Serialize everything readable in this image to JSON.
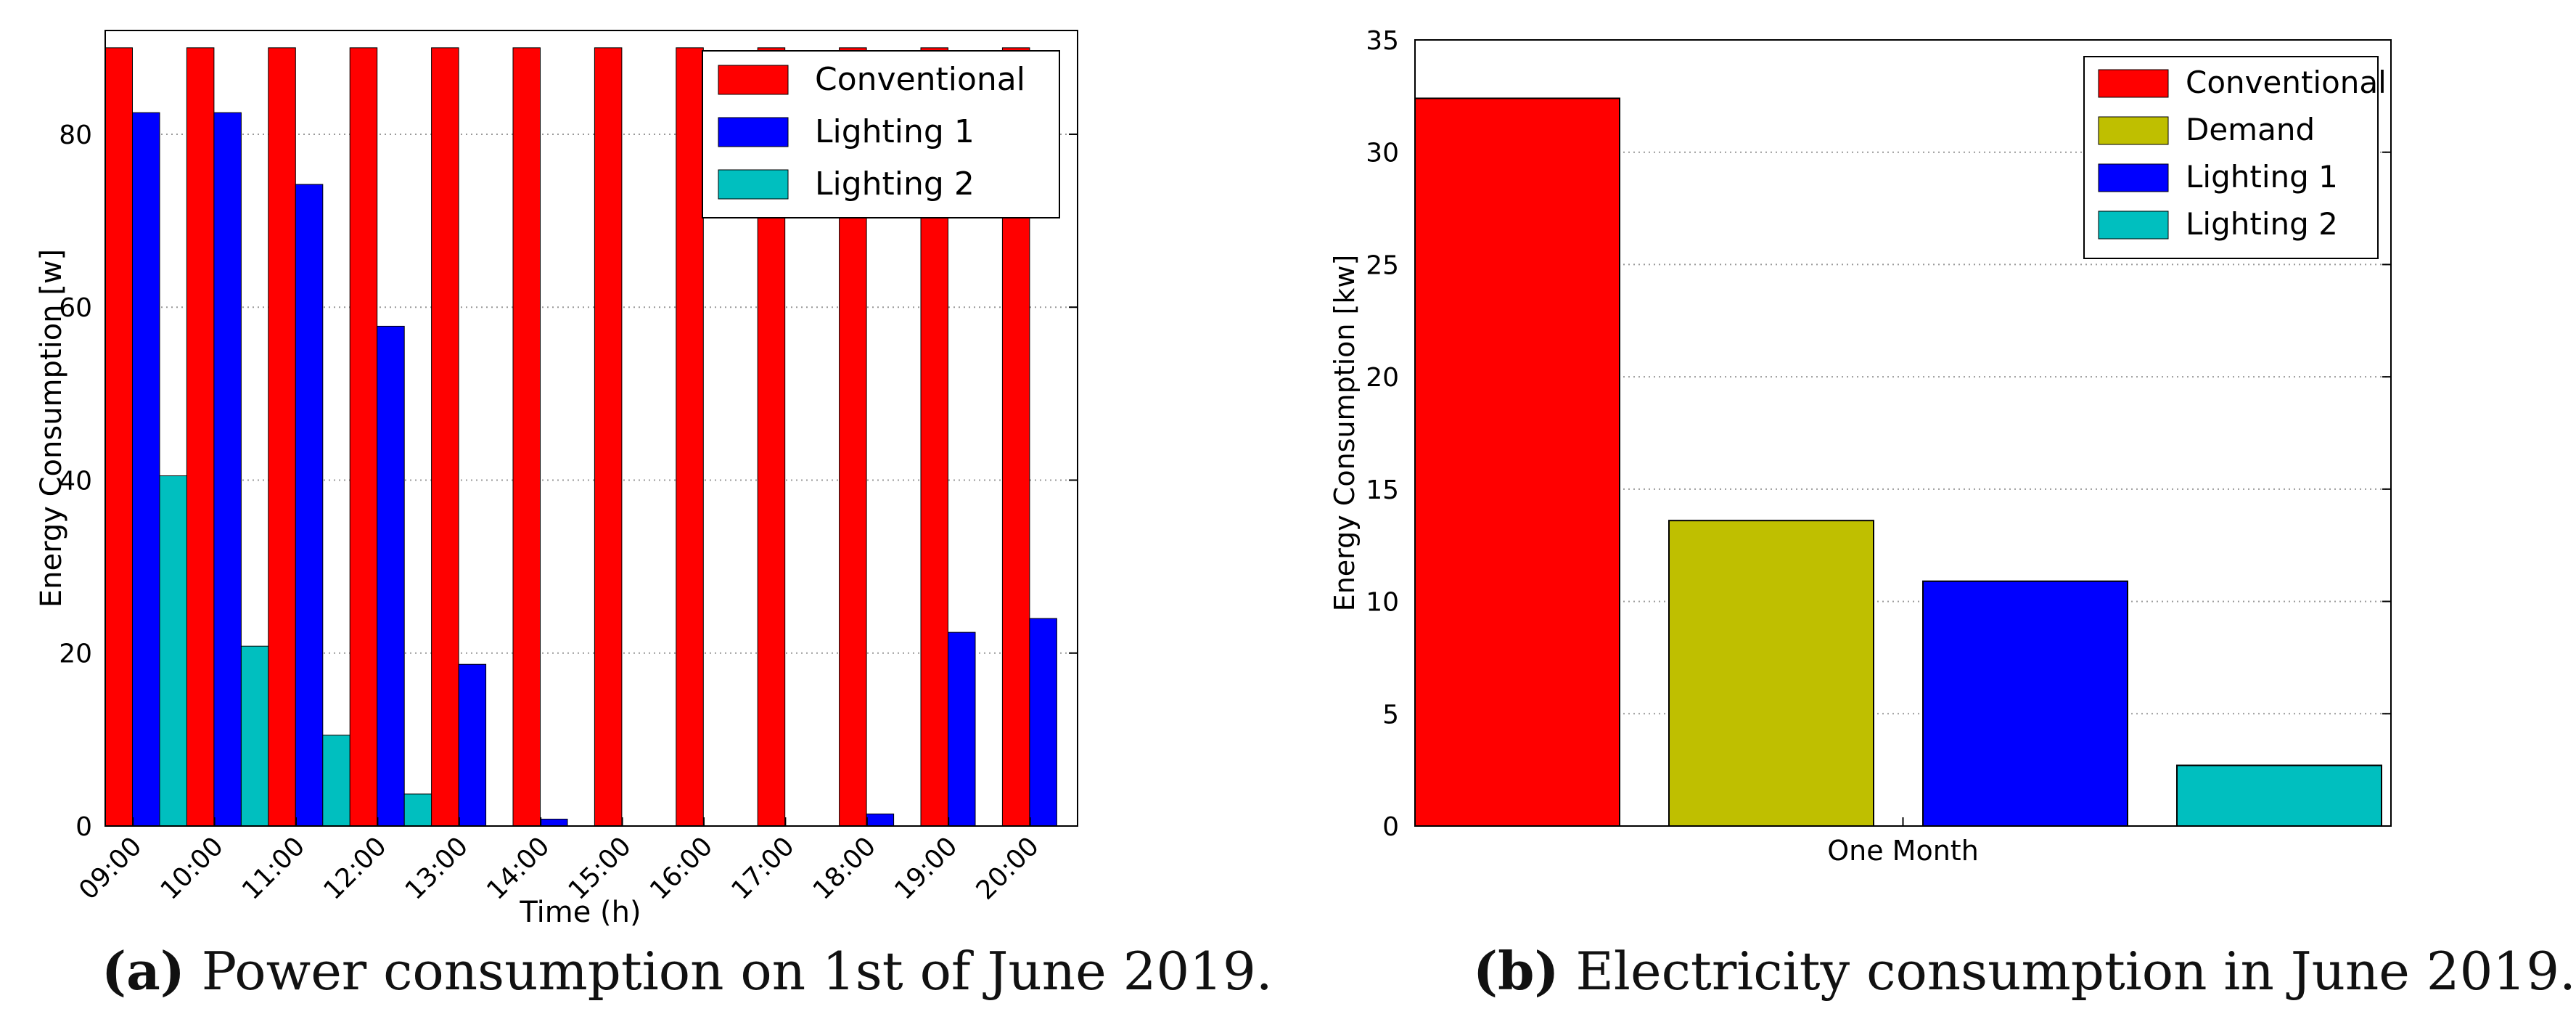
{
  "chart_data": [
    {
      "type": "bar",
      "title": "",
      "xlabel": "Time (h)",
      "ylabel": "Energy Consumption [w]",
      "ylim": [
        0,
        92
      ],
      "yticks": [
        0,
        20,
        40,
        60,
        80
      ],
      "grid": true,
      "legend_position": "top-right",
      "categories": [
        "09:00",
        "10:00",
        "11:00",
        "12:00",
        "13:00",
        "14:00",
        "15:00",
        "16:00",
        "17:00",
        "18:00",
        "19:00",
        "20:00"
      ],
      "series": [
        {
          "name": "Conventional",
          "color": "#ff0000",
          "values": [
            90,
            90,
            90,
            90,
            90,
            90,
            90,
            90,
            90,
            90,
            90,
            90
          ]
        },
        {
          "name": "Lighting 1",
          "color": "#0000ff",
          "values": [
            82.5,
            82.5,
            74.2,
            57.8,
            18.7,
            0.8,
            0,
            0,
            0,
            1.4,
            22.4,
            24
          ]
        },
        {
          "name": "Lighting 2",
          "color": "#00bfbf",
          "values": [
            40.5,
            20.8,
            10.5,
            3.7,
            0,
            0,
            0,
            0,
            0,
            0,
            0,
            0
          ]
        }
      ]
    },
    {
      "type": "bar",
      "title": "",
      "xlabel": "One Month",
      "ylabel": "Energy Consumption [kw]",
      "ylim": [
        0,
        35
      ],
      "yticks": [
        0,
        5,
        10,
        15,
        20,
        25,
        30,
        35
      ],
      "grid": true,
      "legend_position": "top-right",
      "categories": [
        "Conventional",
        "Demand",
        "Lighting 1",
        "Lighting 2"
      ],
      "colors": [
        "#ff0000",
        "#bfbf00",
        "#0000ff",
        "#00bfbf"
      ],
      "values": [
        32.4,
        13.6,
        10.9,
        2.7
      ]
    }
  ],
  "captions": {
    "a": {
      "label": "(a)",
      "text": "Power consumption on 1st of June 2019."
    },
    "b": {
      "label": "(b)",
      "text": "Electricity consumption in June 2019."
    }
  }
}
